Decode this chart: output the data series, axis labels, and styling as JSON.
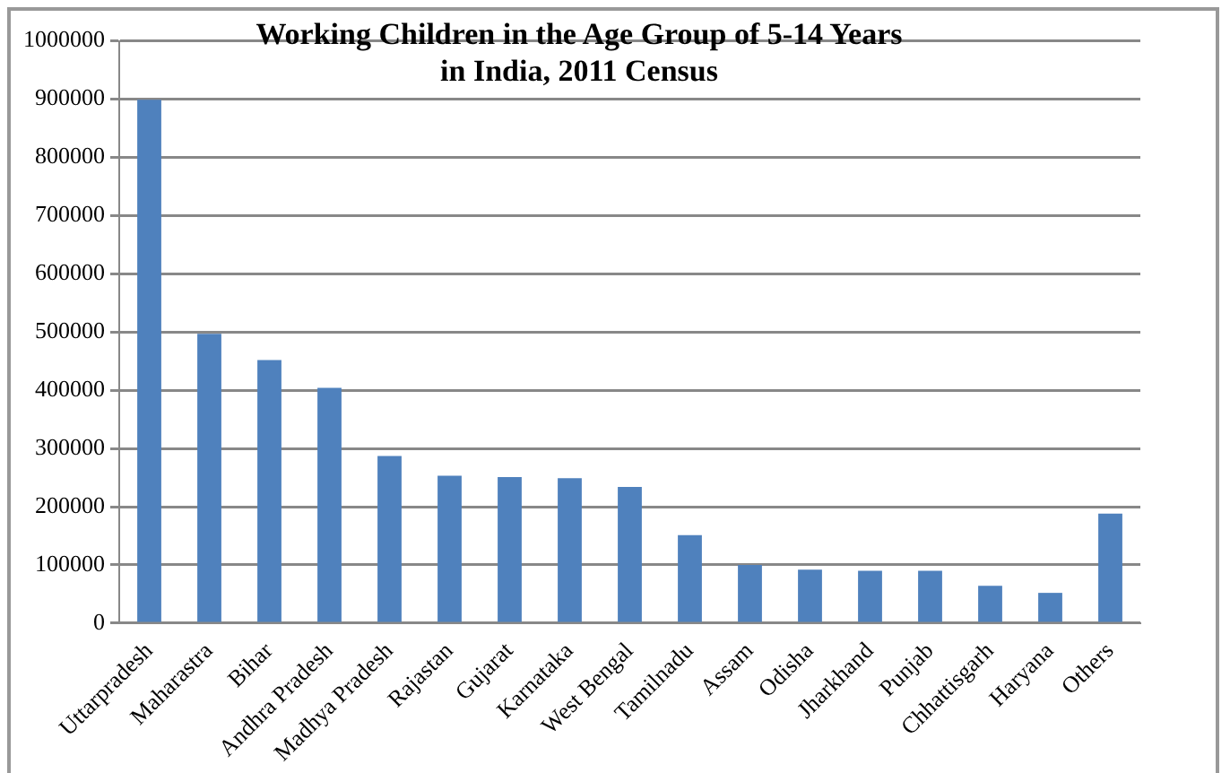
{
  "chart_data": {
    "type": "bar",
    "title": [
      "Working Children in the Age Group of 5-14 Years",
      "in India, 2011 Census"
    ],
    "categories": [
      "Uttarpradesh",
      "Maharastra",
      "Bihar",
      "Andhra Pradesh",
      "Madhya Pradesh",
      "Rajastan",
      "Gujarat",
      "Karnataka",
      "West Bengal",
      "Tamilnadu",
      "Assam",
      "Odisha",
      "Jharkhand",
      "Punjab",
      "Chhattisgarh",
      "Haryana",
      "Others"
    ],
    "values": [
      899000,
      497000,
      452000,
      404000,
      287000,
      253000,
      251000,
      249000,
      234000,
      151000,
      100000,
      92000,
      90000,
      90000,
      64000,
      52000,
      188000
    ],
    "color": "#4f81bd",
    "ylim": [
      0,
      1000000
    ],
    "yticks": [
      0,
      100000,
      200000,
      300000,
      400000,
      500000,
      600000,
      700000,
      800000,
      900000,
      1000000
    ],
    "grid": "y"
  }
}
